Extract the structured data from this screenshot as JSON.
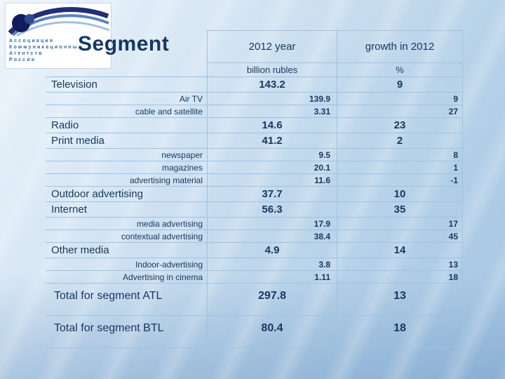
{
  "slide": {
    "title": "Segment",
    "logo": {
      "lines": [
        "Ассоциация",
        "Коммуникационных",
        "Агентств",
        "России"
      ]
    },
    "table": {
      "col_headers": [
        "2012 year",
        "growth in 2012"
      ],
      "unit_headers": [
        "billion rubles",
        "%"
      ],
      "rows": [
        {
          "label": "Television",
          "value": "143.2",
          "growth": "9",
          "type": "main"
        },
        {
          "label": "Air TV",
          "value": "139.9",
          "growth": "9",
          "type": "sub"
        },
        {
          "label": "cable and satellite",
          "value": "3.31",
          "growth": "27",
          "type": "sub"
        },
        {
          "label": "Radio",
          "value": "14.6",
          "growth": "23",
          "type": "main"
        },
        {
          "label": "Print media",
          "value": "41.2",
          "growth": "2",
          "type": "main"
        },
        {
          "label": "newspaper",
          "value": "9.5",
          "growth": "8",
          "type": "sub"
        },
        {
          "label": "magazines",
          "value": "20.1",
          "growth": "1",
          "type": "sub"
        },
        {
          "label": "advertising material",
          "value": "11.6",
          "growth": "-1",
          "type": "sub"
        },
        {
          "label": "Outdoor advertising",
          "value": "37.7",
          "growth": "10",
          "type": "main"
        },
        {
          "label": "Internet",
          "value": "56.3",
          "growth": "35",
          "type": "main"
        },
        {
          "label": "media advertising",
          "value": "17.9",
          "growth": "17",
          "type": "sub"
        },
        {
          "label": "contextual advertising",
          "value": "38.4",
          "growth": "45",
          "type": "sub"
        },
        {
          "label": "Other media",
          "value": "4.9",
          "growth": "14",
          "type": "main"
        },
        {
          "label": "Indoor-advertising",
          "value": "3.8",
          "growth": "13",
          "type": "sub"
        },
        {
          "label": "Advertising in cinema",
          "value": "1.11",
          "growth": "18",
          "type": "sub"
        },
        {
          "label": "Total for segment ATL",
          "value": "297.8",
          "growth": "13",
          "type": "total"
        },
        {
          "label": "Total for segment BTL",
          "value": "80.4",
          "growth": "18",
          "type": "total"
        }
      ]
    },
    "colors": {
      "text": "#17375e",
      "table_border": "#9cc3e4",
      "background_top": "#e9f2fa",
      "background_bottom": "#a3c4e2",
      "logo_background": "#ffffff"
    }
  }
}
